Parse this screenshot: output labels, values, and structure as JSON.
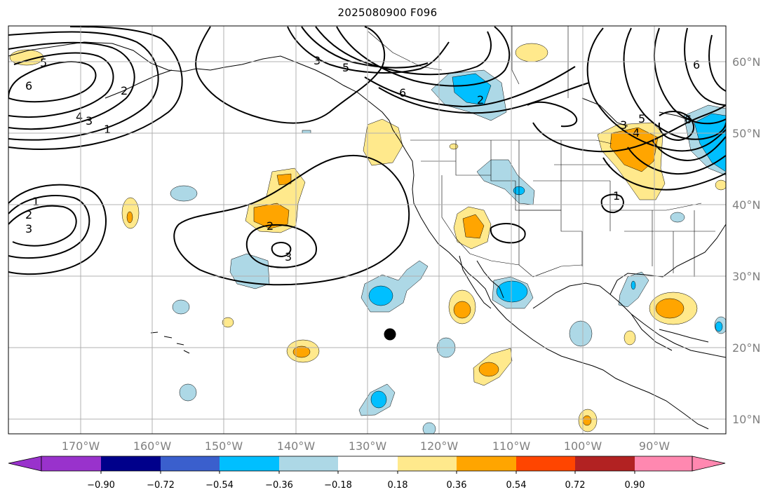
{
  "title": "2025080900 F096",
  "lon_labels": [
    "170°W",
    "160°W",
    "150°W",
    "140°W",
    "130°W",
    "120°W",
    "110°W",
    "100°W",
    "90°W"
  ],
  "lat_labels": [
    "60°N",
    "50°N",
    "40°N",
    "30°N",
    "20°N",
    "10°N"
  ],
  "colorbar": {
    "ticks": [
      "−0.90",
      "−0.72",
      "−0.54",
      "−0.36",
      "−0.18",
      "0.18",
      "0.36",
      "0.54",
      "0.72",
      "0.90"
    ],
    "colors": [
      "#9932cc",
      "#00008b",
      "#3a5fcd",
      "#00bfff",
      "#add8e6",
      "#ffffff",
      "#ffe98c",
      "#ffa500",
      "#ff4500",
      "#b22222",
      "#ff88b0"
    ]
  },
  "contour_labels": [
    "5",
    "6",
    "2",
    "3",
    "4",
    "1",
    "1",
    "2",
    "3",
    "2",
    "3",
    "3",
    "5",
    "6",
    "2",
    "6",
    "5",
    "4",
    "3",
    "6",
    "1"
  ],
  "colors": {
    "light_blue": "#add8e6",
    "deep_sky_blue": "#00bfff",
    "light_yellow": "#ffe98c",
    "orange": "#ffa500",
    "grid": "#b0b0b0",
    "axis_label": "#808080"
  }
}
